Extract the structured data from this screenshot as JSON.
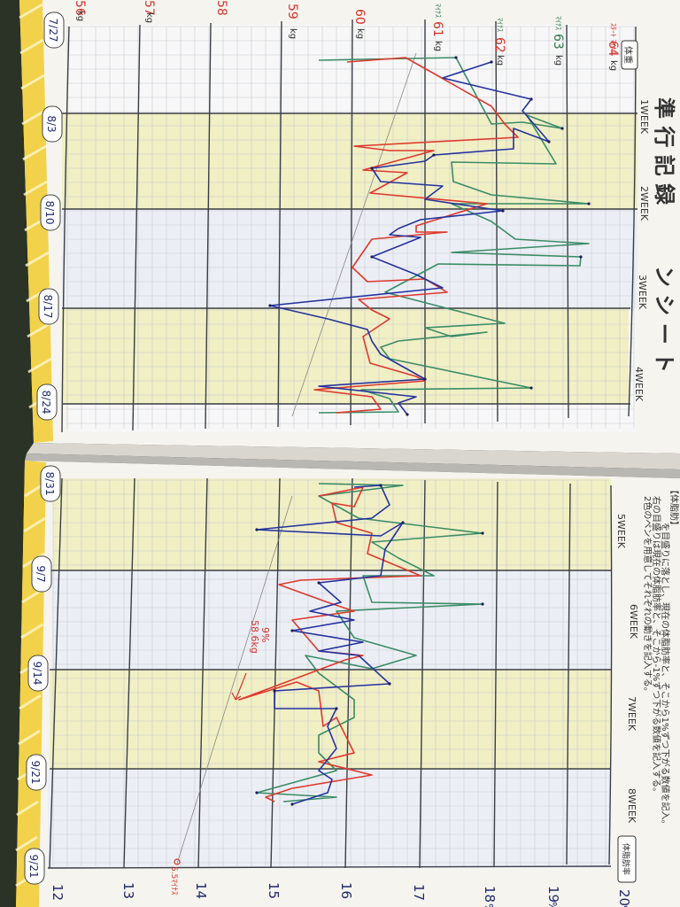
{
  "colors": {
    "blue": "#2433a0",
    "red": "#e0392d",
    "green": "#3a8c66",
    "band": "#f1efc4",
    "grid": "#9aa0a8",
    "stripe": "#f2d24a",
    "label_red": "#d8332a"
  },
  "top_page": {
    "dates": [
      "7/27",
      "8/3",
      "8/10",
      "8/17",
      "8/24"
    ],
    "weeks": [
      "1WEEK",
      "2WEEK",
      "3WEEK",
      "4WEEK"
    ],
    "weight_labels": [
      "64",
      "63",
      "62",
      "61",
      "60",
      "59",
      "58",
      "57",
      "56"
    ],
    "unit": "kg",
    "goal_prefix_64": "ｽﾀｰﾄ ﾏｲﾅｽ",
    "m_prefix": "ﾏｲﾅｽ",
    "header_tag": "体重",
    "title_fragment": "ン シ ー ト",
    "title_pre": "準 行 記 録"
  },
  "bottom_page": {
    "dates": [
      "8/31",
      "9/7",
      "9/14",
      "9/21"
    ],
    "weeks": [
      "5WEEK",
      "6WEEK",
      "7WEEK",
      "8WEEK"
    ],
    "fat_labels": [
      "20",
      "19",
      "18",
      "17",
      "16",
      "15",
      "14",
      "13",
      "12"
    ],
    "fat_unit": "%",
    "header_tag": "体脂肪率",
    "instructions": [
      "【体脂肪】",
      "を目盛りに落とし、現在の体脂肪率と、そこから1%ずつ下がる数値を記入。",
      "右の目盛りは現在の体脂肪率と、そこから-1%ずつ下がる数値を記入する。",
      "2色のペンを用意してそれぞれの動きを記入する。"
    ],
    "annotation_1": "9%",
    "annotation_2": "58.6kg",
    "annotation_3": "5.5ﾏｲﾅｽ"
  }
}
